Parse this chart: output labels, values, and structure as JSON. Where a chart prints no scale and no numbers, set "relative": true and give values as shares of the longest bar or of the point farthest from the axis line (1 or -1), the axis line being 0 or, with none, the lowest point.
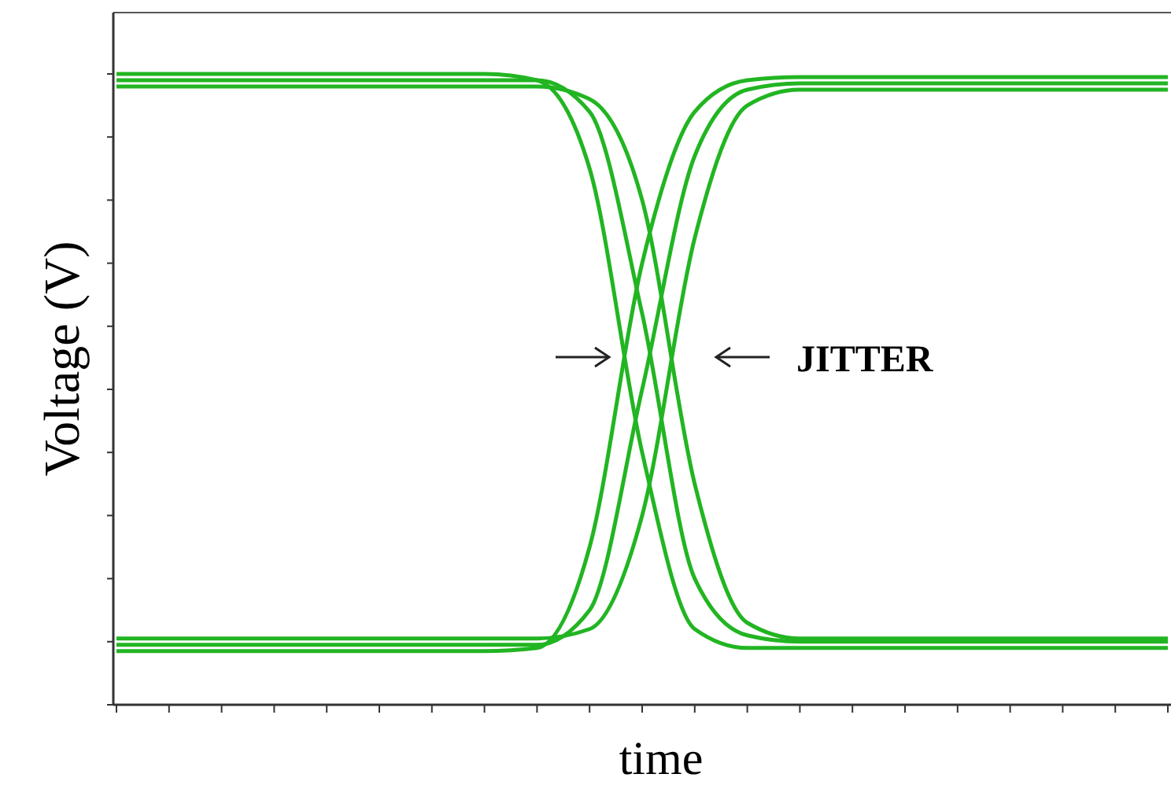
{
  "chart_data": {
    "type": "line",
    "relative": true,
    "xlabel": "time",
    "ylabel": "Voltage (V)",
    "annotations": [
      "JITTER"
    ],
    "categories": [
      null,
      null,
      null,
      null,
      null,
      null,
      null,
      null,
      null,
      null,
      null,
      null,
      null,
      null,
      null,
      null,
      null,
      null,
      null,
      null,
      null
    ],
    "series": [
      {
        "color": "#22b522",
        "values": [
          1,
          1,
          1,
          1,
          1,
          1,
          1,
          1,
          0.99,
          0.85,
          0.4,
          0.12,
          0.09,
          0.09,
          0.09,
          0.09,
          0.09,
          0.09,
          0.09,
          0.09,
          0.09
        ]
      },
      {
        "color": "#22b522",
        "values": [
          0.99,
          0.99,
          0.99,
          0.99,
          0.99,
          0.99,
          0.99,
          0.99,
          0.99,
          0.94,
          0.62,
          0.2,
          0.11,
          0.1,
          0.1,
          0.1,
          0.1,
          0.1,
          0.1,
          0.1,
          0.1
        ]
      },
      {
        "color": "#22b522",
        "values": [
          0.98,
          0.98,
          0.98,
          0.98,
          0.98,
          0.98,
          0.98,
          0.98,
          0.98,
          0.96,
          0.8,
          0.35,
          0.13,
          0.105,
          0.105,
          0.105,
          0.105,
          0.105,
          0.105,
          0.105,
          0.105
        ]
      },
      {
        "color": "#22b522",
        "values": [
          0.085,
          0.085,
          0.085,
          0.085,
          0.085,
          0.085,
          0.085,
          0.085,
          0.09,
          0.25,
          0.7,
          0.94,
          0.99,
          0.995,
          0.995,
          0.995,
          0.995,
          0.995,
          0.995,
          0.995,
          0.995
        ]
      },
      {
        "color": "#22b522",
        "values": [
          0.095,
          0.095,
          0.095,
          0.095,
          0.095,
          0.095,
          0.095,
          0.095,
          0.095,
          0.15,
          0.5,
          0.87,
          0.975,
          0.985,
          0.985,
          0.985,
          0.985,
          0.985,
          0.985,
          0.985,
          0.985
        ]
      },
      {
        "color": "#22b522",
        "values": [
          0.105,
          0.105,
          0.105,
          0.105,
          0.105,
          0.105,
          0.105,
          0.105,
          0.105,
          0.12,
          0.3,
          0.74,
          0.95,
          0.975,
          0.975,
          0.975,
          0.975,
          0.975,
          0.975,
          0.975,
          0.975
        ]
      }
    ]
  }
}
